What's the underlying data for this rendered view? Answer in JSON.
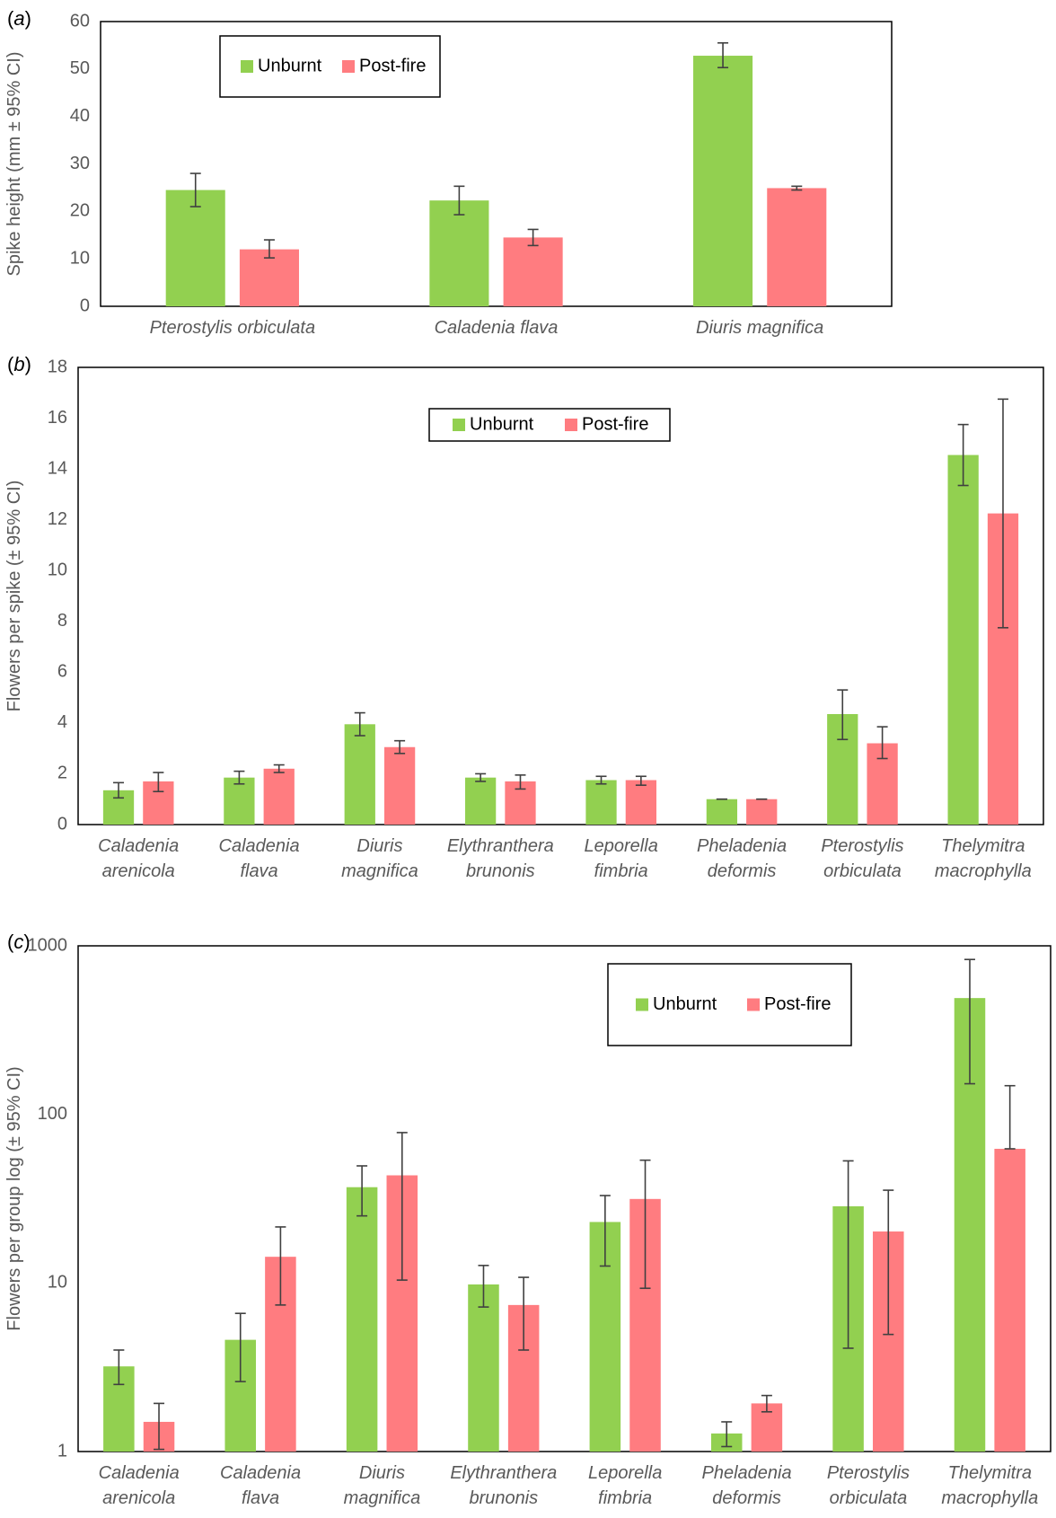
{
  "colors": {
    "unburnt": "#92D050",
    "postfire": "#FF7C80",
    "axis": "#000000",
    "text": "#595959",
    "errorbar": "#404040"
  },
  "panel_label_letters": [
    "a",
    "b",
    "c"
  ],
  "chart_data": [
    {
      "type": "bar",
      "panel": "a",
      "title": "",
      "xlabel": "",
      "ylabel": "Spike height (mm ± 95% CI)",
      "ylim": [
        0,
        60
      ],
      "yticks": [
        0,
        10,
        20,
        30,
        40,
        50,
        60
      ],
      "yscale": "linear",
      "categories": [
        [
          "Pterostylis orbiculata"
        ],
        [
          "Caladenia flava"
        ],
        [
          "Diuris magnifica"
        ]
      ],
      "legend": {
        "position": "top-left",
        "entries": [
          "Unburnt",
          "Post-fire"
        ]
      },
      "series": [
        {
          "name": "Unburnt",
          "values": [
            24.5,
            22.3,
            52.8
          ],
          "ci_low": [
            21.0,
            19.3,
            50.3
          ],
          "ci_high": [
            28.0,
            25.3,
            55.5
          ]
        },
        {
          "name": "Post-fire",
          "values": [
            12.0,
            14.5,
            24.9
          ],
          "ci_low": [
            10.2,
            12.8,
            24.5
          ],
          "ci_high": [
            14.0,
            16.2,
            25.3
          ]
        }
      ]
    },
    {
      "type": "bar",
      "panel": "b",
      "title": "",
      "xlabel": "",
      "ylabel": "Flowers per spike (± 95% CI)",
      "ylim": [
        0,
        18
      ],
      "yticks": [
        0,
        2,
        4,
        6,
        8,
        10,
        12,
        14,
        16,
        18
      ],
      "yscale": "linear",
      "categories": [
        [
          "Caladenia",
          "arenicola"
        ],
        [
          "Caladenia",
          "flava"
        ],
        [
          "Diuris",
          "magnifica"
        ],
        [
          "Elythranthera",
          "brunonis"
        ],
        [
          "Leporella",
          "fimbria"
        ],
        [
          "Pheladenia",
          "deformis"
        ],
        [
          "Pterostylis",
          "orbiculata"
        ],
        [
          "Thelymitra",
          "macrophylla"
        ]
      ],
      "legend": {
        "position": "top-center",
        "entries": [
          "Unburnt",
          "Post-fire"
        ]
      },
      "series": [
        {
          "name": "Unburnt",
          "values": [
            1.35,
            1.85,
            3.95,
            1.85,
            1.75,
            1.0,
            4.35,
            14.55
          ],
          "ci_low": [
            1.05,
            1.6,
            3.5,
            1.7,
            1.6,
            1.0,
            3.35,
            13.35
          ],
          "ci_high": [
            1.65,
            2.1,
            4.4,
            2.0,
            1.9,
            1.0,
            5.3,
            15.75
          ]
        },
        {
          "name": "Post-fire",
          "values": [
            1.7,
            2.2,
            3.05,
            1.7,
            1.75,
            1.0,
            3.2,
            12.25
          ],
          "ci_low": [
            1.3,
            2.05,
            2.8,
            1.4,
            1.55,
            1.0,
            2.6,
            7.75
          ],
          "ci_high": [
            2.05,
            2.35,
            3.3,
            1.95,
            1.9,
            1.0,
            3.85,
            16.75
          ]
        }
      ]
    },
    {
      "type": "bar",
      "panel": "c",
      "title": "",
      "xlabel": "",
      "ylabel": "Flowers per group log (± 95% CI)",
      "ylim": [
        1,
        1000
      ],
      "yticks": [
        1,
        10,
        100,
        1000
      ],
      "yscale": "log",
      "categories": [
        [
          "Caladenia",
          "arenicola"
        ],
        [
          "Caladenia",
          "flava"
        ],
        [
          "Diuris",
          "magnifica"
        ],
        [
          "Elythranthera",
          "brunonis"
        ],
        [
          "Leporella",
          "fimbria"
        ],
        [
          "Pheladenia",
          "deformis"
        ],
        [
          "Pterostylis",
          "orbiculata"
        ],
        [
          "Thelymitra",
          "macrophylla"
        ]
      ],
      "legend": {
        "position": "top-right",
        "entries": [
          "Unburnt",
          "Post-fire"
        ]
      },
      "series": [
        {
          "name": "Unburnt",
          "values": [
            3.2,
            4.6,
            37,
            9.8,
            23,
            1.28,
            28.5,
            490
          ],
          "ci_low": [
            2.5,
            2.6,
            25,
            7.2,
            12.6,
            1.07,
            4.1,
            152
          ],
          "ci_high": [
            4.0,
            6.6,
            49.5,
            12.7,
            33,
            1.5,
            53,
            830
          ]
        },
        {
          "name": "Post-fire",
          "values": [
            1.5,
            14.3,
            43.5,
            7.4,
            31.5,
            1.93,
            20.2,
            62.5
          ],
          "ci_low": [
            1.03,
            7.4,
            10.4,
            4.0,
            9.3,
            1.72,
            4.95,
            62.5
          ],
          "ci_high": [
            1.93,
            21.5,
            78,
            10.8,
            53.5,
            2.15,
            35.5,
            148
          ]
        }
      ]
    }
  ]
}
